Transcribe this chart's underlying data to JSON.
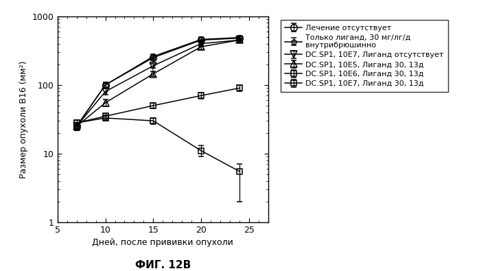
{
  "title": "ФИГ. 12В",
  "xlabel": "Дней, после прививки опухоли",
  "ylabel": "Размер опухоли В16 (мм²)",
  "xdata": [
    7,
    10,
    15,
    20,
    24
  ],
  "series": [
    {
      "label": "Лечение отсутствует",
      "y": [
        25,
        100,
        250,
        450,
        480
      ],
      "yerr": [
        3,
        10,
        20,
        35,
        35
      ],
      "marker": "o",
      "linestyle": "-",
      "fillstyle": "none",
      "markersize": 7
    },
    {
      "label": "Только лиганд, 30 мг/лг/д\nвнутрибрюшинно",
      "y": [
        25,
        100,
        260,
        460,
        490
      ],
      "yerr": [
        3,
        10,
        20,
        35,
        35
      ],
      "marker": "o",
      "linestyle": "-",
      "fillstyle": "none",
      "markersize": 5
    },
    {
      "label": "DC.SP1, 10E7, Лиганд отсутствует",
      "y": [
        25,
        80,
        190,
        400,
        450
      ],
      "yerr": [
        3,
        8,
        15,
        30,
        30
      ],
      "marker": "v",
      "linestyle": "-",
      "fillstyle": "none",
      "markersize": 7
    },
    {
      "label": "DC.SP1, 10E5, Лиганд 30, 13д",
      "y": [
        25,
        55,
        145,
        360,
        450
      ],
      "yerr": [
        3,
        6,
        12,
        28,
        28
      ],
      "marker": "^",
      "linestyle": "-",
      "fillstyle": "none",
      "markersize": 7
    },
    {
      "label": "DC.SP1, 10E6, Лиганд 30, 13д",
      "y": [
        28,
        35,
        50,
        70,
        90
      ],
      "yerr": [
        3,
        4,
        5,
        7,
        9
      ],
      "marker": "s",
      "linestyle": "-",
      "fillstyle": "none",
      "markersize": 6
    },
    {
      "label": "DC.SP1, 10E7, Лиганд 30, 13д",
      "y": [
        28,
        33,
        30,
        11,
        5.5
      ],
      "yerr_low": [
        3,
        3,
        3,
        2,
        3.5
      ],
      "yerr_high": [
        3,
        3,
        3,
        2,
        1.5
      ],
      "marker": "s",
      "linestyle": "-",
      "fillstyle": "none",
      "markersize": 6
    }
  ],
  "xlim": [
    5,
    27
  ],
  "ylim": [
    1,
    1000
  ],
  "xticks": [
    5,
    10,
    15,
    20,
    25
  ],
  "yticks": [
    1,
    10,
    100,
    1000
  ],
  "background_color": "#ffffff",
  "legend_fontsize": 8,
  "axis_fontsize": 9,
  "tick_fontsize": 9
}
